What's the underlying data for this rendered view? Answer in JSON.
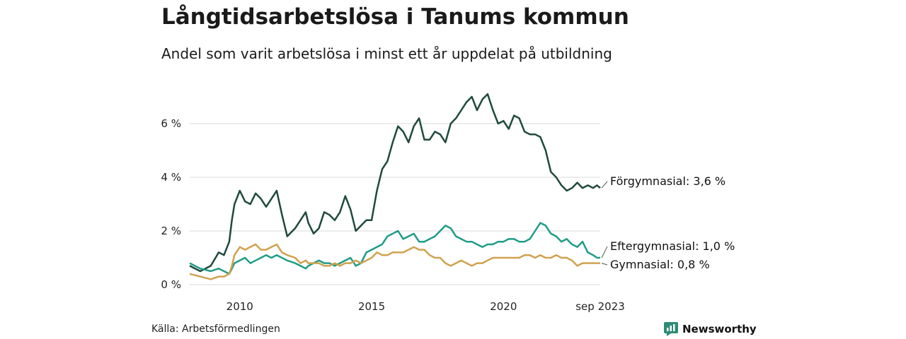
{
  "title": "Långtidsarbetslösa i Tanums kommun",
  "subtitle": "Andel som varit arbetslösa i minst ett år uppdelat på utbildning",
  "source": "Källa: Arbetsförmedlingen",
  "brand": {
    "name": "Newsworthy",
    "color": "#2e8b77"
  },
  "chart_data": {
    "type": "line",
    "ylim": [
      0,
      7.5
    ],
    "yticks": [
      0,
      2,
      4,
      6
    ],
    "ytick_labels": [
      "0 %",
      "2 %",
      "4 %",
      "6 %"
    ],
    "xlim": [
      2008.1,
      2023.67
    ],
    "xticks": [
      2010,
      2015,
      2020,
      2023.67
    ],
    "xtick_labels": [
      "2010",
      "2015",
      "2020",
      "sep 2023"
    ],
    "grid": "horizontal",
    "series": [
      {
        "name": "Förgymnasial",
        "label": "Förgymnasial: 3,6 %",
        "color": "#1f4a3c",
        "x": [
          2008.1,
          2008.5,
          2008.9,
          2009.2,
          2009.4,
          2009.6,
          2009.7,
          2009.8,
          2010,
          2010.2,
          2010.4,
          2010.6,
          2010.8,
          2011,
          2011.2,
          2011.4,
          2011.6,
          2011.8,
          2012.1,
          2012.3,
          2012.5,
          2012.6,
          2012.8,
          2013,
          2013.2,
          2013.4,
          2013.6,
          2013.8,
          2014,
          2014.2,
          2014.4,
          2014.6,
          2014.8,
          2015,
          2015.2,
          2015.4,
          2015.6,
          2015.8,
          2016,
          2016.2,
          2016.4,
          2016.6,
          2016.8,
          2017,
          2017.2,
          2017.4,
          2017.6,
          2017.8,
          2018,
          2018.2,
          2018.4,
          2018.6,
          2018.8,
          2019,
          2019.2,
          2019.4,
          2019.6,
          2019.8,
          2020,
          2020.2,
          2020.4,
          2020.6,
          2020.8,
          2021,
          2021.2,
          2021.4,
          2021.6,
          2021.8,
          2022,
          2022.2,
          2022.4,
          2022.6,
          2022.8,
          2023,
          2023.2,
          2023.4,
          2023.55,
          2023.67
        ],
        "values": [
          0.7,
          0.5,
          0.7,
          1.2,
          1.1,
          1.6,
          2.4,
          3.0,
          3.5,
          3.1,
          3.0,
          3.4,
          3.2,
          2.9,
          3.2,
          3.5,
          2.6,
          1.8,
          2.1,
          2.4,
          2.7,
          2.3,
          1.9,
          2.1,
          2.7,
          2.6,
          2.4,
          2.7,
          3.3,
          2.8,
          2.0,
          2.2,
          2.4,
          2.4,
          3.5,
          4.3,
          4.6,
          5.3,
          5.9,
          5.7,
          5.3,
          5.9,
          6.2,
          5.4,
          5.4,
          5.7,
          5.6,
          5.3,
          6.0,
          6.2,
          6.5,
          6.8,
          7.0,
          6.5,
          6.9,
          7.1,
          6.5,
          6.0,
          6.1,
          5.8,
          6.3,
          6.2,
          5.7,
          5.6,
          5.6,
          5.5,
          5.0,
          4.2,
          4.0,
          3.7,
          3.5,
          3.6,
          3.8,
          3.6,
          3.7,
          3.6,
          3.7,
          3.6
        ]
      },
      {
        "name": "Eftergymnasial",
        "label": "Eftergymnasial: 1,0 %",
        "color": "#1f9c86",
        "x": [
          2008.1,
          2008.5,
          2008.9,
          2009.2,
          2009.4,
          2009.6,
          2009.7,
          2009.8,
          2010,
          2010.2,
          2010.4,
          2010.6,
          2010.8,
          2011,
          2011.2,
          2011.4,
          2011.6,
          2011.8,
          2012.1,
          2012.3,
          2012.5,
          2012.6,
          2012.8,
          2013,
          2013.2,
          2013.4,
          2013.6,
          2013.8,
          2014,
          2014.2,
          2014.4,
          2014.6,
          2014.8,
          2015,
          2015.2,
          2015.4,
          2015.6,
          2015.8,
          2016,
          2016.2,
          2016.4,
          2016.6,
          2016.8,
          2017,
          2017.2,
          2017.4,
          2017.6,
          2017.8,
          2018,
          2018.2,
          2018.4,
          2018.6,
          2018.8,
          2019,
          2019.2,
          2019.4,
          2019.6,
          2019.8,
          2020,
          2020.2,
          2020.4,
          2020.6,
          2020.8,
          2021,
          2021.2,
          2021.4,
          2021.6,
          2021.8,
          2022,
          2022.2,
          2022.4,
          2022.6,
          2022.8,
          2023,
          2023.2,
          2023.4,
          2023.55,
          2023.67
        ],
        "values": [
          0.8,
          0.6,
          0.5,
          0.6,
          0.5,
          0.4,
          0.6,
          0.8,
          0.9,
          1.0,
          0.8,
          0.9,
          1.0,
          1.1,
          1.0,
          1.1,
          1.0,
          0.9,
          0.8,
          0.7,
          0.6,
          0.7,
          0.8,
          0.9,
          0.8,
          0.8,
          0.7,
          0.8,
          0.9,
          1.0,
          0.7,
          0.8,
          1.2,
          1.3,
          1.4,
          1.5,
          1.8,
          1.9,
          2.0,
          1.7,
          1.8,
          1.9,
          1.6,
          1.6,
          1.7,
          1.8,
          2.0,
          2.2,
          2.1,
          1.8,
          1.7,
          1.6,
          1.6,
          1.5,
          1.4,
          1.5,
          1.5,
          1.6,
          1.6,
          1.7,
          1.7,
          1.6,
          1.6,
          1.7,
          2.0,
          2.3,
          2.2,
          1.9,
          1.8,
          1.6,
          1.7,
          1.5,
          1.4,
          1.6,
          1.2,
          1.1,
          1.0,
          1.0
        ]
      },
      {
        "name": "Gymnasial",
        "label": "Gymnasial: 0,8 %",
        "color": "#cfa24f",
        "x": [
          2008.1,
          2008.5,
          2008.9,
          2009.2,
          2009.4,
          2009.6,
          2009.7,
          2009.8,
          2010,
          2010.2,
          2010.4,
          2010.6,
          2010.8,
          2011,
          2011.2,
          2011.4,
          2011.6,
          2011.8,
          2012.1,
          2012.3,
          2012.5,
          2012.6,
          2012.8,
          2013,
          2013.2,
          2013.4,
          2013.6,
          2013.8,
          2014,
          2014.2,
          2014.4,
          2014.6,
          2014.8,
          2015,
          2015.2,
          2015.4,
          2015.6,
          2015.8,
          2016,
          2016.2,
          2016.4,
          2016.6,
          2016.8,
          2017,
          2017.2,
          2017.4,
          2017.6,
          2017.8,
          2018,
          2018.2,
          2018.4,
          2018.6,
          2018.8,
          2019,
          2019.2,
          2019.4,
          2019.6,
          2019.8,
          2020,
          2020.2,
          2020.4,
          2020.6,
          2020.8,
          2021,
          2021.2,
          2021.4,
          2021.6,
          2021.8,
          2022,
          2022.2,
          2022.4,
          2022.6,
          2022.8,
          2023,
          2023.2,
          2023.4,
          2023.55,
          2023.67
        ],
        "values": [
          0.4,
          0.3,
          0.2,
          0.3,
          0.3,
          0.4,
          0.7,
          1.1,
          1.4,
          1.3,
          1.4,
          1.5,
          1.3,
          1.3,
          1.4,
          1.5,
          1.2,
          1.1,
          1.0,
          0.8,
          0.9,
          0.8,
          0.8,
          0.8,
          0.7,
          0.7,
          0.8,
          0.7,
          0.8,
          0.8,
          0.9,
          0.8,
          0.9,
          1.0,
          1.2,
          1.1,
          1.1,
          1.2,
          1.2,
          1.2,
          1.3,
          1.4,
          1.3,
          1.3,
          1.1,
          1.0,
          1.0,
          0.8,
          0.7,
          0.8,
          0.9,
          0.8,
          0.7,
          0.8,
          0.8,
          0.9,
          1.0,
          1.0,
          1.0,
          1.0,
          1.0,
          1.0,
          1.1,
          1.1,
          1.0,
          1.1,
          1.0,
          1.0,
          1.1,
          1.0,
          1.0,
          0.9,
          0.7,
          0.8,
          0.8,
          0.8,
          0.8,
          0.8
        ]
      }
    ]
  }
}
